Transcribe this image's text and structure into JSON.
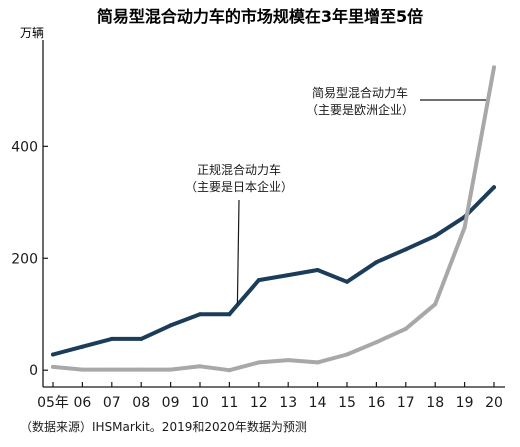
{
  "chart_data": {
    "type": "line",
    "title": "简易型混合动力车的市场规模在3年里增至5倍",
    "yunit": "万辆",
    "x": [
      "05年",
      "06",
      "07",
      "08",
      "09",
      "10",
      "11",
      "12",
      "13",
      "14",
      "15",
      "16",
      "17",
      "18",
      "19",
      "20"
    ],
    "ylim": [
      -30,
      590
    ],
    "yticks": [
      0,
      200,
      400
    ],
    "series": [
      {
        "name": "正规混合动力车（主要是日本企业）",
        "color": "#1c3d5a",
        "values": [
          28,
          42,
          56,
          56,
          80,
          100,
          100,
          161,
          170,
          179,
          158,
          193,
          216,
          240,
          274,
          327
        ]
      },
      {
        "name": "简易型混合动力车（主要是欧洲企业）",
        "color": "#a8a8a8",
        "values": [
          6,
          1,
          1,
          1,
          1,
          7,
          0,
          14,
          18,
          14,
          28,
          50,
          74,
          118,
          255,
          541
        ]
      }
    ],
    "annotations": [
      {
        "series": 0,
        "lines": [
          "正规混合动力车",
          "（主要是日本企业）"
        ]
      },
      {
        "series": 1,
        "lines": [
          "简易型混合动力车",
          "（主要是欧洲企业）"
        ]
      }
    ],
    "grid": false,
    "source": "（数据来源）IHSMarkit。2019和2020年数据为预测"
  }
}
